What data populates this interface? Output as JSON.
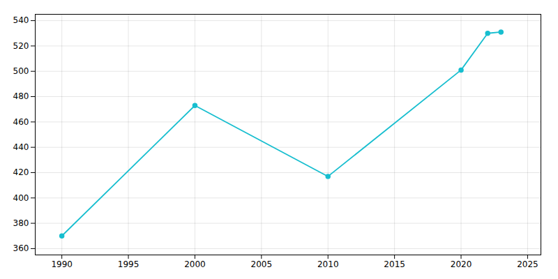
{
  "chart_data": {
    "type": "line",
    "x": [
      1990,
      2000,
      2010,
      2020,
      2022,
      2023
    ],
    "values": [
      370,
      473,
      417,
      501,
      530,
      531
    ],
    "color": "#17BECF",
    "marker": "circle",
    "xlim": [
      1988,
      2026
    ],
    "xticks": [
      1990,
      1995,
      2000,
      2005,
      2010,
      2015,
      2020,
      2025
    ],
    "ylim": [
      355,
      545
    ],
    "yticks": [
      360,
      380,
      400,
      420,
      440,
      460,
      480,
      500,
      520,
      540
    ],
    "grid": true
  }
}
